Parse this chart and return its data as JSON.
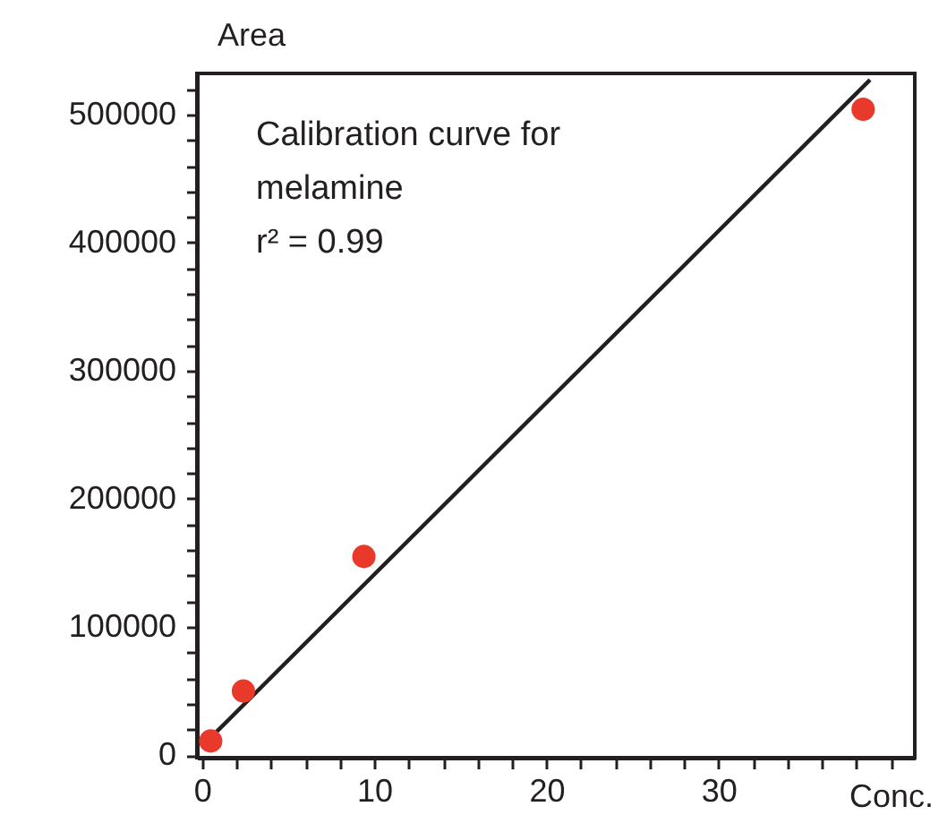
{
  "chart_data": {
    "type": "scatter",
    "ylabel": "Area",
    "xlabel": "Conc.",
    "annotations": [
      "Calibration curve for\nmelamine",
      "r² = 0.99"
    ],
    "series": [
      {
        "type": "scatter",
        "marker": "circle",
        "color": "#e8392a",
        "x": [
          0.5,
          2.4,
          9.4,
          38.4
        ],
        "values": [
          11000,
          50000,
          155000,
          504000
        ]
      },
      {
        "type": "line",
        "color": "#231f20",
        "x": [
          0.6,
          38.8
        ],
        "values": [
          15000,
          527000
        ]
      }
    ],
    "xlim": [
      -0.3,
      41.4
    ],
    "xticks": [
      0,
      {
        "value": 2,
        "label": null
      },
      {
        "value": 4,
        "label": null
      },
      {
        "value": 6,
        "label": null
      },
      {
        "value": 8,
        "label": null
      },
      10,
      {
        "value": 12,
        "label": null
      },
      {
        "value": 14,
        "label": null
      },
      {
        "value": 16,
        "label": null
      },
      {
        "value": 18,
        "label": null
      },
      20,
      {
        "value": 22,
        "label": null
      },
      {
        "value": 24,
        "label": null
      },
      {
        "value": 26,
        "label": null
      },
      {
        "value": 28,
        "label": null
      },
      30,
      {
        "value": 32,
        "label": null
      },
      {
        "value": 34,
        "label": null
      },
      {
        "value": 36,
        "label": null
      },
      {
        "value": 38,
        "label": null
      },
      {
        "value": 40,
        "label": null
      }
    ],
    "ylim": [
      -2000,
      532000
    ],
    "yticks": [
      0,
      {
        "value": 20000,
        "label": null
      },
      {
        "value": 40000,
        "label": null
      },
      {
        "value": 60000,
        "label": null
      },
      {
        "value": 80000,
        "label": null
      },
      100000,
      {
        "value": 120000,
        "label": null
      },
      {
        "value": 140000,
        "label": null
      },
      {
        "value": 160000,
        "label": null
      },
      {
        "value": 180000,
        "label": null
      },
      200000,
      {
        "value": 220000,
        "label": null
      },
      {
        "value": 240000,
        "label": null
      },
      {
        "value": 260000,
        "label": null
      },
      {
        "value": 280000,
        "label": null
      },
      300000,
      {
        "value": 320000,
        "label": null
      },
      {
        "value": 340000,
        "label": null
      },
      {
        "value": 360000,
        "label": null
      },
      {
        "value": 380000,
        "label": null
      },
      400000,
      {
        "value": 420000,
        "label": null
      },
      {
        "value": 440000,
        "label": null
      },
      {
        "value": 460000,
        "label": null
      },
      {
        "value": 480000,
        "label": null
      },
      500000,
      {
        "value": 520000,
        "label": null
      }
    ]
  }
}
